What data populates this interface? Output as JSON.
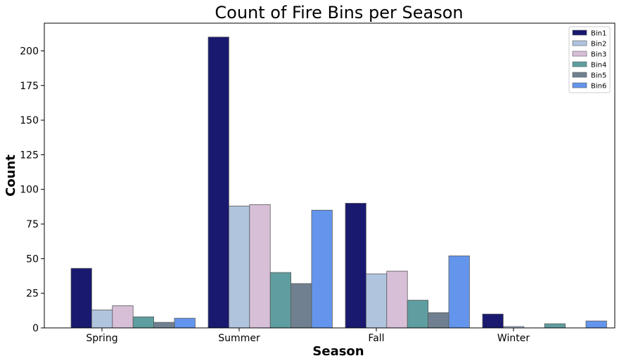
{
  "chart_data": {
    "type": "bar",
    "title": "Count of Fire Bins per Season",
    "xlabel": "Season",
    "ylabel": "Count",
    "categories": [
      "Spring",
      "Summer",
      "Fall",
      "Winter"
    ],
    "ylim": [
      0,
      220
    ],
    "yticks": [
      0,
      25,
      50,
      75,
      100,
      125,
      150,
      175,
      200
    ],
    "legend_position": "top-right",
    "grid": false,
    "series": [
      {
        "name": "Bin1",
        "color": "#191970",
        "values": [
          43,
          210,
          90,
          10
        ]
      },
      {
        "name": "Bin2",
        "color": "#b0c4de",
        "values": [
          13,
          88,
          39,
          1
        ]
      },
      {
        "name": "Bin3",
        "color": "#d8bfd8",
        "values": [
          16,
          89,
          41,
          0
        ]
      },
      {
        "name": "Bin4",
        "color": "#5f9ea0",
        "values": [
          8,
          40,
          20,
          3
        ]
      },
      {
        "name": "Bin5",
        "color": "#708090",
        "values": [
          4,
          32,
          11,
          0
        ]
      },
      {
        "name": "Bin6",
        "color": "#6495ed",
        "values": [
          7,
          85,
          52,
          5
        ]
      }
    ]
  }
}
